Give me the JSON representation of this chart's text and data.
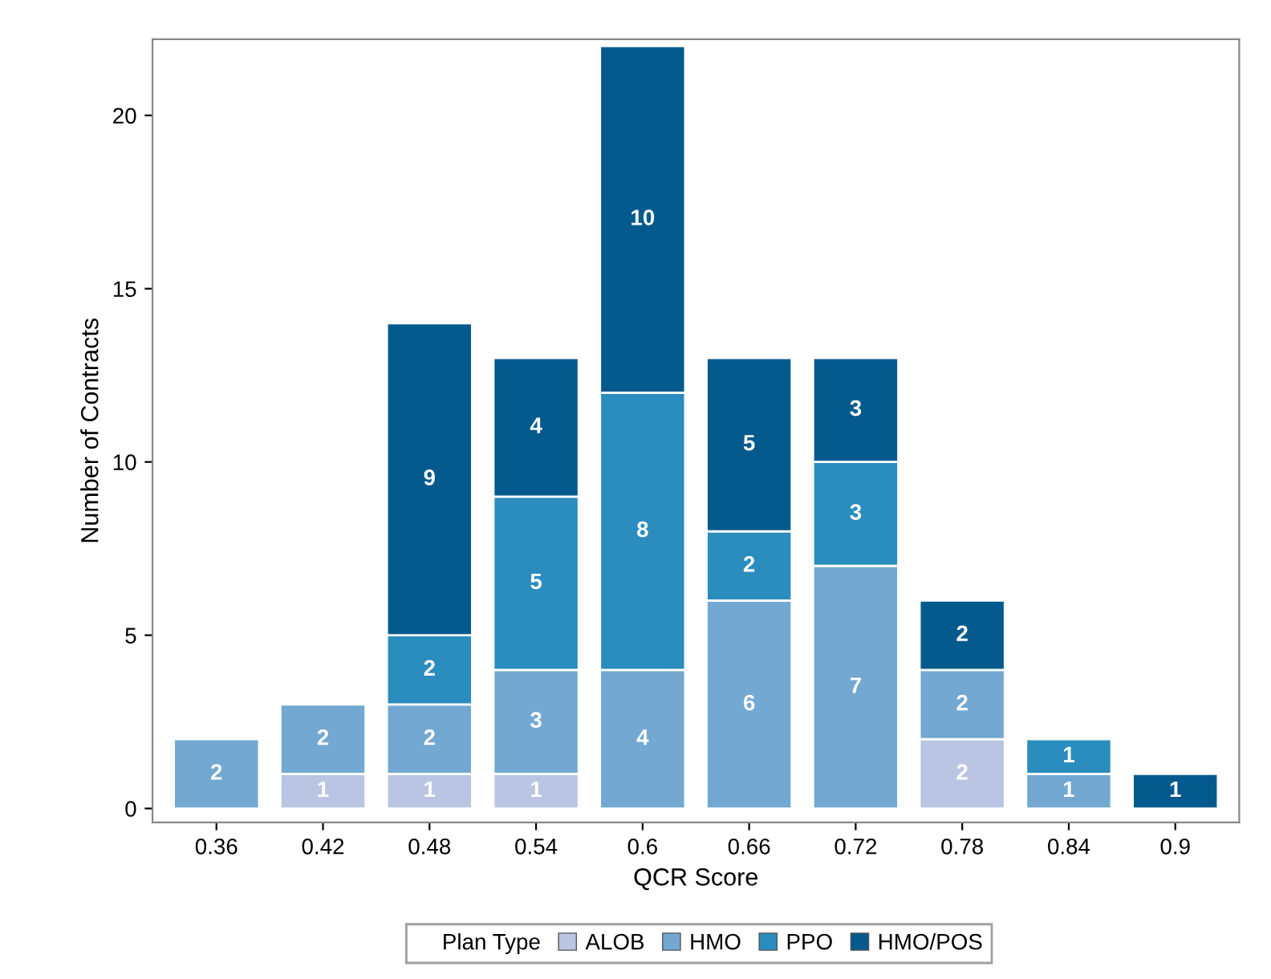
{
  "chart_data": {
    "type": "bar",
    "stacked": true,
    "xlabel": "QCR Score",
    "ylabel": "Number of Contracts",
    "legend_title": "Plan Type",
    "categories": [
      "0.36",
      "0.42",
      "0.48",
      "0.54",
      "0.6",
      "0.66",
      "0.72",
      "0.78",
      "0.84",
      "0.9"
    ],
    "series": [
      {
        "name": "ALOB",
        "color": "#b9c5e2",
        "values": [
          null,
          1,
          1,
          1,
          null,
          null,
          null,
          2,
          null,
          null
        ]
      },
      {
        "name": "HMO",
        "color": "#72a8d1",
        "values": [
          2,
          2,
          2,
          3,
          4,
          6,
          7,
          2,
          1,
          null
        ]
      },
      {
        "name": "PPO",
        "color": "#2b8cbe",
        "values": [
          null,
          null,
          2,
          5,
          8,
          2,
          3,
          null,
          1,
          null
        ]
      },
      {
        "name": "HMO/POS",
        "color": "#045a8d",
        "values": [
          null,
          null,
          9,
          4,
          10,
          5,
          3,
          2,
          null,
          1
        ]
      }
    ],
    "ylim": [
      -0.4,
      22.2
    ],
    "yticks": [
      0,
      5,
      10,
      15,
      20
    ],
    "grid": false,
    "legend": "bottom",
    "data_labels": true
  }
}
